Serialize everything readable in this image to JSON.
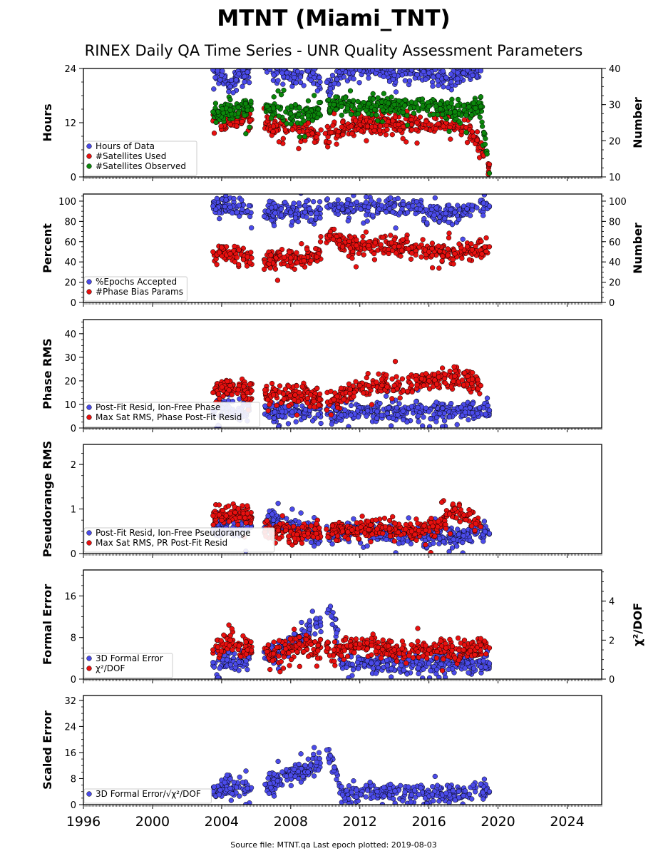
{
  "chart_data": {
    "type": "scatter",
    "title": "MTNT (Miami_TNT)",
    "subtitle": "RINEX Daily QA Time Series - UNR Quality Assessment Parameters",
    "footer": "Source file: MTNT.qa Last epoch plotted: 2019-08-03",
    "x_range": [
      1996,
      2026
    ],
    "x_ticks": [
      "1996",
      "2000",
      "2004",
      "2008",
      "2012",
      "2016",
      "2020",
      "2024"
    ],
    "series_colors": {
      "blue": "#4b4bea",
      "red": "#e8100f",
      "green": "#0b870b"
    },
    "panels": [
      {
        "id": "hours",
        "ylabel": "Hours",
        "ylim": [
          0,
          24
        ],
        "yticks": [
          "0",
          "12",
          "24"
        ],
        "y2label": "Number",
        "y2lim": [
          10,
          40
        ],
        "y2ticks": [
          "10",
          "20",
          "30",
          "40"
        ],
        "legend": [
          "Hours of Data",
          "#Satellites Used",
          "#Satellites Observed"
        ],
        "series": [
          {
            "name": "Hours of Data",
            "color": "blue",
            "axis": "left",
            "points": [
              [
                2003.5,
                23.7
              ],
              [
                2004.0,
                22.5
              ],
              [
                2004.5,
                20.0
              ],
              [
                2005.0,
                22.8
              ],
              [
                2005.5,
                23.2
              ],
              [
                2006.8,
                23.8
              ],
              [
                2007.5,
                23.0
              ],
              [
                2008.2,
                22.0
              ],
              [
                2009.0,
                23.5
              ],
              [
                2009.7,
                21.0
              ],
              [
                2010.3,
                19.5
              ],
              [
                2011.0,
                23.8
              ],
              [
                2012.0,
                23.6
              ],
              [
                2013.0,
                23.8
              ],
              [
                2014.0,
                22.5
              ],
              [
                2015.0,
                23.7
              ],
              [
                2016.0,
                23.0
              ],
              [
                2017.0,
                22.0
              ],
              [
                2018.0,
                23.0
              ],
              [
                2019.0,
                23.5
              ]
            ]
          },
          {
            "name": "#Satellites Used",
            "color": "red",
            "axis": "right",
            "points": [
              [
                2003.5,
                25.5
              ],
              [
                2004.5,
                24.5
              ],
              [
                2005.5,
                27.0
              ],
              [
                2007.0,
                24.0
              ],
              [
                2008.5,
                22.5
              ],
              [
                2010.0,
                22.0
              ],
              [
                2011.5,
                24.0
              ],
              [
                2013.0,
                25.0
              ],
              [
                2015.0,
                24.5
              ],
              [
                2017.0,
                25.0
              ],
              [
                2018.5,
                22.5
              ],
              [
                2019.5,
                13.5
              ]
            ]
          },
          {
            "name": "#Satellites Observed",
            "color": "green",
            "axis": "right",
            "points": [
              [
                2003.5,
                28.0
              ],
              [
                2004.5,
                28.5
              ],
              [
                2005.5,
                28.5
              ],
              [
                2007.0,
                29.0
              ],
              [
                2008.0,
                27.5
              ],
              [
                2009.0,
                27.0
              ],
              [
                2010.5,
                30.0
              ],
              [
                2012.0,
                29.5
              ],
              [
                2014.0,
                30.0
              ],
              [
                2016.0,
                29.5
              ],
              [
                2017.5,
                28.0
              ],
              [
                2019.0,
                29.5
              ],
              [
                2019.5,
                11.0
              ]
            ]
          }
        ]
      },
      {
        "id": "percent",
        "ylabel": "Percent",
        "ylim": [
          0,
          107
        ],
        "yticks": [
          "0",
          "20",
          "40",
          "60",
          "80",
          "100"
        ],
        "y2label": "Number",
        "y2lim": [
          0,
          107
        ],
        "y2ticks": [
          "0",
          "20",
          "40",
          "60",
          "80",
          "100"
        ],
        "legend": [
          "%Epochs Accepted",
          "#Phase Bias Params"
        ],
        "series": [
          {
            "name": "%Epochs Accepted",
            "color": "blue",
            "axis": "left",
            "points": [
              [
                2003.5,
                95
              ],
              [
                2004.5,
                94
              ],
              [
                2005.5,
                90
              ],
              [
                2006.7,
                90
              ],
              [
                2008.0,
                89
              ],
              [
                2009.5,
                88
              ],
              [
                2010.3,
                96
              ],
              [
                2011.0,
                92
              ],
              [
                2012.5,
                94
              ],
              [
                2014.0,
                95
              ],
              [
                2015.5,
                92
              ],
              [
                2016.3,
                86
              ],
              [
                2017.5,
                89
              ],
              [
                2018.5,
                91
              ],
              [
                2019.5,
                95
              ]
            ]
          },
          {
            "name": "#Phase Bias Params",
            "color": "red",
            "axis": "right",
            "points": [
              [
                2003.5,
                50
              ],
              [
                2004.5,
                48
              ],
              [
                2005.5,
                45
              ],
              [
                2006.8,
                42
              ],
              [
                2008.0,
                44
              ],
              [
                2009.5,
                45
              ],
              [
                2010.3,
                70
              ],
              [
                2011.0,
                55
              ],
              [
                2012.5,
                56
              ],
              [
                2014.0,
                55
              ],
              [
                2016.0,
                50
              ],
              [
                2017.5,
                48
              ],
              [
                2018.5,
                52
              ],
              [
                2019.5,
                55
              ]
            ]
          }
        ]
      },
      {
        "id": "phase",
        "ylabel": "Phase RMS",
        "ylim": [
          0,
          46
        ],
        "yticks": [
          "0",
          "10",
          "20",
          "30",
          "40"
        ],
        "legend": [
          "Post-Fit Resid, Ion-Free Phase",
          "Max Sat RMS, Phase Post-Fit Resid"
        ],
        "series": [
          {
            "name": "Post-Fit Resid, Ion-Free Phase",
            "color": "blue",
            "axis": "left",
            "points": [
              [
                2003.5,
                7.5
              ],
              [
                2005.0,
                7.2
              ],
              [
                2007.5,
                7.0
              ],
              [
                2010.3,
                6.5
              ],
              [
                2013.0,
                7.0
              ],
              [
                2016.0,
                7.0
              ],
              [
                2019.5,
                7.5
              ]
            ]
          },
          {
            "name": "Max Sat RMS, Phase Post-Fit Resid",
            "color": "red",
            "axis": "left",
            "points": [
              [
                2003.5,
                15
              ],
              [
                2004.5,
                18
              ],
              [
                2005.5,
                15
              ],
              [
                2007.0,
                14
              ],
              [
                2008.5,
                15
              ],
              [
                2010.5,
                12
              ],
              [
                2012.0,
                18
              ],
              [
                2014.0,
                18
              ],
              [
                2016.0,
                20
              ],
              [
                2017.5,
                22
              ],
              [
                2019.0,
                18
              ]
            ]
          }
        ]
      },
      {
        "id": "pseudorange",
        "ylabel": "Pseudorange RMS",
        "ylim": [
          0,
          2.45
        ],
        "yticks": [
          "0",
          "1",
          "2"
        ],
        "legend": [
          "Post-Fit Resid, Ion-Free Pseudorange",
          "Max Sat RMS, PR Post-Fit Resid"
        ],
        "series": [
          {
            "name": "Post-Fit Resid, Ion-Free Pseudorange",
            "color": "blue",
            "axis": "left",
            "points": [
              [
                2003.5,
                0.55
              ],
              [
                2005.0,
                0.55
              ],
              [
                2007.0,
                0.75
              ],
              [
                2009.0,
                0.4
              ],
              [
                2012.0,
                0.5
              ],
              [
                2015.0,
                0.38
              ],
              [
                2018.0,
                0.4
              ],
              [
                2019.5,
                0.45
              ]
            ]
          },
          {
            "name": "Max Sat RMS, PR Post-Fit Resid",
            "color": "red",
            "axis": "left",
            "points": [
              [
                2003.5,
                0.85
              ],
              [
                2004.5,
                0.9
              ],
              [
                2005.5,
                0.9
              ],
              [
                2007.0,
                0.45
              ],
              [
                2009.0,
                0.45
              ],
              [
                2011.0,
                0.5
              ],
              [
                2013.0,
                0.55
              ],
              [
                2015.0,
                0.5
              ],
              [
                2016.5,
                0.6
              ],
              [
                2017.5,
                1.0
              ],
              [
                2019.0,
                0.6
              ]
            ]
          }
        ]
      },
      {
        "id": "formal",
        "ylabel": "Formal Error",
        "ylim": [
          0,
          21
        ],
        "yticks": [
          "0",
          "8",
          "16"
        ],
        "y2label": "χ²/DOF",
        "y2lim": [
          0,
          5.6
        ],
        "y2ticks": [
          "0",
          "2",
          "4"
        ],
        "legend": [
          "3D Formal Error",
          "χ²/DOF"
        ],
        "series": [
          {
            "name": "3D Formal Error",
            "color": "blue",
            "axis": "left",
            "points": [
              [
                2003.5,
                3.2
              ],
              [
                2005.0,
                3.3
              ],
              [
                2007.0,
                5.0
              ],
              [
                2008.5,
                8.0
              ],
              [
                2009.5,
                10.0
              ],
              [
                2010.3,
                14.0
              ],
              [
                2011.0,
                3.0
              ],
              [
                2013.0,
                3.0
              ],
              [
                2016.0,
                3.0
              ],
              [
                2019.5,
                3.0
              ]
            ]
          },
          {
            "name": "χ²/DOF",
            "color": "red",
            "axis": "left2",
            "points": [
              [
                2003.5,
                1.5
              ],
              [
                2004.5,
                2.0
              ],
              [
                2005.5,
                1.5
              ],
              [
                2007.0,
                1.3
              ],
              [
                2008.5,
                1.8
              ],
              [
                2010.5,
                1.5
              ],
              [
                2012.0,
                1.8
              ],
              [
                2014.0,
                1.5
              ],
              [
                2016.0,
                1.5
              ],
              [
                2018.0,
                1.5
              ],
              [
                2019.5,
                1.6
              ]
            ]
          }
        ]
      },
      {
        "id": "scaled",
        "ylabel": "Scaled Error",
        "ylim": [
          0,
          33.5
        ],
        "yticks": [
          "0",
          "8",
          "16",
          "24",
          "32"
        ],
        "legend": [
          "3D Formal Error/√χ²/DOF"
        ],
        "series": [
          {
            "name": "3D Formal Error/√χ²/DOF",
            "color": "blue",
            "axis": "left",
            "points": [
              [
                2003.5,
                4.0
              ],
              [
                2004.5,
                5.0
              ],
              [
                2005.5,
                5.0
              ],
              [
                2006.8,
                6.5
              ],
              [
                2008.0,
                9.0
              ],
              [
                2009.0,
                10.0
              ],
              [
                2009.5,
                13.0
              ],
              [
                2010.3,
                15.0
              ],
              [
                2011.0,
                3.0
              ],
              [
                2013.0,
                4.0
              ],
              [
                2015.0,
                3.0
              ],
              [
                2017.0,
                3.5
              ],
              [
                2019.5,
                4.0
              ]
            ]
          }
        ]
      }
    ]
  }
}
